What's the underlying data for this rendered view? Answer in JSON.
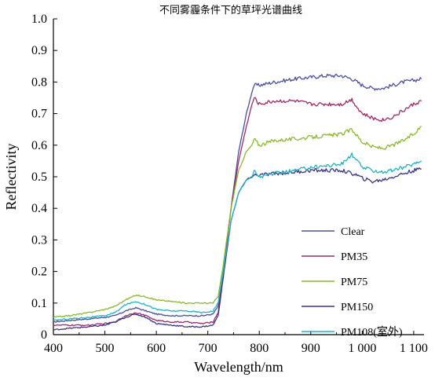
{
  "chart_data": {
    "type": "line",
    "title": "不同雾霾条件下的草坪光谱曲线",
    "xlabel": "Wavelength/nm",
    "ylabel": "Reflectivity",
    "xlim": [
      400,
      1120
    ],
    "ylim": [
      0,
      1.0
    ],
    "xticks": [
      400,
      500,
      600,
      700,
      800,
      900,
      1000,
      1100
    ],
    "xtick_labels": [
      "400",
      "500",
      "600",
      "700",
      "800",
      "900",
      "1 000",
      "1 100"
    ],
    "yticks": [
      0,
      0.1,
      0.2,
      0.3,
      0.4,
      0.5,
      0.6,
      0.7,
      0.8,
      0.9,
      1.0
    ],
    "ytick_labels": [
      "0",
      "0.1",
      "0.2",
      "0.3",
      "0.4",
      "0.5",
      "0.6",
      "0.7",
      "0.8",
      "0.9",
      "1.0"
    ],
    "grid": false,
    "legend_position": "right-bottom",
    "series": [
      {
        "name": "Clear",
        "color": "#4a4f9a",
        "points": [
          [
            400,
            0.04
          ],
          [
            430,
            0.045
          ],
          [
            470,
            0.05
          ],
          [
            500,
            0.055
          ],
          [
            520,
            0.06
          ],
          [
            540,
            0.075
          ],
          [
            560,
            0.085
          ],
          [
            580,
            0.075
          ],
          [
            600,
            0.065
          ],
          [
            630,
            0.06
          ],
          [
            660,
            0.06
          ],
          [
            690,
            0.06
          ],
          [
            710,
            0.065
          ],
          [
            720,
            0.09
          ],
          [
            730,
            0.2
          ],
          [
            745,
            0.4
          ],
          [
            760,
            0.58
          ],
          [
            775,
            0.7
          ],
          [
            786,
            0.77
          ],
          [
            790,
            0.79
          ],
          [
            800,
            0.79
          ],
          [
            830,
            0.8
          ],
          [
            870,
            0.81
          ],
          [
            900,
            0.815
          ],
          [
            930,
            0.82
          ],
          [
            960,
            0.82
          ],
          [
            980,
            0.81
          ],
          [
            990,
            0.8
          ],
          [
            1000,
            0.79
          ],
          [
            1020,
            0.78
          ],
          [
            1040,
            0.78
          ],
          [
            1060,
            0.79
          ],
          [
            1080,
            0.8
          ],
          [
            1100,
            0.805
          ],
          [
            1115,
            0.81
          ]
        ]
      },
      {
        "name": "PM35",
        "color": "#9b2a6a",
        "points": [
          [
            400,
            0.03
          ],
          [
            430,
            0.03
          ],
          [
            470,
            0.03
          ],
          [
            500,
            0.035
          ],
          [
            520,
            0.04
          ],
          [
            540,
            0.06
          ],
          [
            560,
            0.07
          ],
          [
            580,
            0.06
          ],
          [
            600,
            0.045
          ],
          [
            630,
            0.04
          ],
          [
            660,
            0.04
          ],
          [
            690,
            0.035
          ],
          [
            710,
            0.04
          ],
          [
            720,
            0.07
          ],
          [
            730,
            0.2
          ],
          [
            745,
            0.4
          ],
          [
            760,
            0.55
          ],
          [
            775,
            0.66
          ],
          [
            786,
            0.73
          ],
          [
            790,
            0.75
          ],
          [
            800,
            0.73
          ],
          [
            830,
            0.74
          ],
          [
            870,
            0.74
          ],
          [
            900,
            0.73
          ],
          [
            930,
            0.73
          ],
          [
            960,
            0.73
          ],
          [
            980,
            0.745
          ],
          [
            990,
            0.72
          ],
          [
            1000,
            0.7
          ],
          [
            1020,
            0.685
          ],
          [
            1040,
            0.68
          ],
          [
            1060,
            0.69
          ],
          [
            1080,
            0.71
          ],
          [
            1100,
            0.73
          ],
          [
            1115,
            0.74
          ]
        ]
      },
      {
        "name": "PM75",
        "color": "#8ab82a",
        "points": [
          [
            400,
            0.055
          ],
          [
            430,
            0.06
          ],
          [
            470,
            0.07
          ],
          [
            500,
            0.08
          ],
          [
            520,
            0.09
          ],
          [
            540,
            0.11
          ],
          [
            560,
            0.125
          ],
          [
            580,
            0.12
          ],
          [
            600,
            0.11
          ],
          [
            630,
            0.105
          ],
          [
            660,
            0.1
          ],
          [
            690,
            0.1
          ],
          [
            710,
            0.1
          ],
          [
            720,
            0.12
          ],
          [
            730,
            0.22
          ],
          [
            745,
            0.4
          ],
          [
            760,
            0.52
          ],
          [
            775,
            0.58
          ],
          [
            786,
            0.6
          ],
          [
            790,
            0.62
          ],
          [
            800,
            0.6
          ],
          [
            830,
            0.615
          ],
          [
            870,
            0.62
          ],
          [
            900,
            0.625
          ],
          [
            930,
            0.63
          ],
          [
            960,
            0.635
          ],
          [
            980,
            0.65
          ],
          [
            990,
            0.63
          ],
          [
            1000,
            0.61
          ],
          [
            1020,
            0.595
          ],
          [
            1040,
            0.59
          ],
          [
            1060,
            0.6
          ],
          [
            1080,
            0.615
          ],
          [
            1100,
            0.635
          ],
          [
            1115,
            0.66
          ]
        ]
      },
      {
        "name": "PM150",
        "color": "#3a3580",
        "points": [
          [
            400,
            0.015
          ],
          [
            430,
            0.02
          ],
          [
            470,
            0.025
          ],
          [
            500,
            0.03
          ],
          [
            520,
            0.04
          ],
          [
            540,
            0.055
          ],
          [
            560,
            0.065
          ],
          [
            580,
            0.055
          ],
          [
            600,
            0.035
          ],
          [
            630,
            0.03
          ],
          [
            660,
            0.025
          ],
          [
            690,
            0.025
          ],
          [
            710,
            0.03
          ],
          [
            720,
            0.06
          ],
          [
            730,
            0.18
          ],
          [
            745,
            0.36
          ],
          [
            760,
            0.45
          ],
          [
            775,
            0.49
          ],
          [
            786,
            0.5
          ],
          [
            790,
            0.505
          ],
          [
            800,
            0.505
          ],
          [
            830,
            0.51
          ],
          [
            870,
            0.515
          ],
          [
            900,
            0.52
          ],
          [
            930,
            0.52
          ],
          [
            960,
            0.52
          ],
          [
            980,
            0.51
          ],
          [
            990,
            0.505
          ],
          [
            1000,
            0.495
          ],
          [
            1020,
            0.485
          ],
          [
            1040,
            0.49
          ],
          [
            1060,
            0.5
          ],
          [
            1080,
            0.51
          ],
          [
            1100,
            0.52
          ],
          [
            1115,
            0.525
          ]
        ]
      },
      {
        "name": "PM108(室外)",
        "color": "#22b2c0",
        "points": [
          [
            400,
            0.045
          ],
          [
            430,
            0.05
          ],
          [
            470,
            0.055
          ],
          [
            500,
            0.06
          ],
          [
            520,
            0.07
          ],
          [
            540,
            0.095
          ],
          [
            560,
            0.105
          ],
          [
            580,
            0.095
          ],
          [
            600,
            0.08
          ],
          [
            630,
            0.075
          ],
          [
            660,
            0.075
          ],
          [
            690,
            0.07
          ],
          [
            710,
            0.075
          ],
          [
            720,
            0.1
          ],
          [
            730,
            0.2
          ],
          [
            745,
            0.36
          ],
          [
            760,
            0.45
          ],
          [
            775,
            0.49
          ],
          [
            786,
            0.5
          ],
          [
            790,
            0.52
          ],
          [
            800,
            0.5
          ],
          [
            830,
            0.51
          ],
          [
            870,
            0.52
          ],
          [
            900,
            0.53
          ],
          [
            930,
            0.535
          ],
          [
            960,
            0.54
          ],
          [
            980,
            0.57
          ],
          [
            990,
            0.55
          ],
          [
            1000,
            0.53
          ],
          [
            1020,
            0.52
          ],
          [
            1040,
            0.515
          ],
          [
            1060,
            0.52
          ],
          [
            1080,
            0.53
          ],
          [
            1100,
            0.54
          ],
          [
            1115,
            0.55
          ]
        ]
      }
    ]
  }
}
